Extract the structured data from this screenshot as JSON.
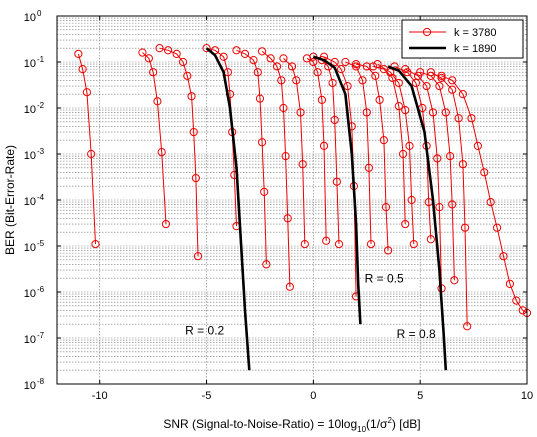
{
  "chart_data": {
    "type": "line",
    "title": "",
    "xlabel_parts": {
      "main": "SNR (Signal-to-Noise-Ratio) = 10log",
      "sub": "10",
      "rest": "(1/σ",
      "sup": "2",
      "end": ") [dB]"
    },
    "ylabel": "BER (Bit-Error-Rate)",
    "xlim": [
      -12,
      10
    ],
    "ylim_exponent": [
      -8,
      0
    ],
    "xscale": "linear",
    "yscale": "log",
    "grid": true,
    "x_ticks": [
      -10,
      -5,
      0,
      5,
      10
    ],
    "x_tick_labels": [
      "-10",
      "-5",
      "0",
      "5",
      "10"
    ],
    "y_tick_exponents": [
      0,
      -1,
      -2,
      -3,
      -4,
      -5,
      -6,
      -7,
      -8
    ],
    "y_tick_base": "10",
    "legend": {
      "position": "top-right",
      "entries": [
        {
          "label": "k = 3780",
          "style": "red-circle-line"
        },
        {
          "label": "k = 1890",
          "style": "black-thick-line"
        }
      ]
    },
    "colors": {
      "k3780": "#ee0000",
      "k1890": "#000000"
    },
    "series_k3780": [
      [
        [
          -11.0,
          0.15
        ],
        [
          -10.8,
          0.07
        ],
        [
          -10.6,
          0.022
        ],
        [
          -10.4,
          0.001
        ],
        [
          -10.2,
          1.1e-05
        ]
      ],
      [
        [
          -8.0,
          0.16
        ],
        [
          -7.7,
          0.12
        ],
        [
          -7.5,
          0.06
        ],
        [
          -7.3,
          0.014
        ],
        [
          -7.1,
          0.0011
        ],
        [
          -6.9,
          3e-05
        ]
      ],
      [
        [
          -7.2,
          0.2
        ],
        [
          -6.8,
          0.18
        ],
        [
          -6.4,
          0.15
        ],
        [
          -6.1,
          0.1
        ],
        [
          -5.9,
          0.05
        ],
        [
          -5.7,
          0.018
        ],
        [
          -5.6,
          0.003
        ],
        [
          -5.5,
          0.0003
        ],
        [
          -5.4,
          6e-06
        ]
      ],
      [
        [
          -5.0,
          0.2
        ],
        [
          -4.6,
          0.18
        ],
        [
          -4.2,
          0.13
        ],
        [
          -4.0,
          0.06
        ],
        [
          -3.9,
          0.02
        ],
        [
          -3.8,
          0.003
        ],
        [
          -3.7,
          0.00035
        ],
        [
          -3.6,
          2.7e-05
        ]
      ],
      [
        [
          -3.6,
          0.18
        ],
        [
          -3.2,
          0.15
        ],
        [
          -2.8,
          0.11
        ],
        [
          -2.6,
          0.06
        ],
        [
          -2.5,
          0.016
        ],
        [
          -2.4,
          0.0018
        ],
        [
          -2.3,
          0.00015
        ],
        [
          -2.2,
          4e-06
        ]
      ],
      [
        [
          -2.4,
          0.17
        ],
        [
          -2.0,
          0.12
        ],
        [
          -1.7,
          0.08
        ],
        [
          -1.5,
          0.04
        ],
        [
          -1.4,
          0.01
        ],
        [
          -1.3,
          0.0009
        ],
        [
          -1.2,
          4e-05
        ],
        [
          -1.1,
          1.3e-06
        ]
      ],
      [
        [
          -1.4,
          0.12
        ],
        [
          -1.0,
          0.08
        ],
        [
          -0.8,
          0.04
        ],
        [
          -0.6,
          0.008
        ],
        [
          -0.5,
          0.0006
        ],
        [
          -0.4,
          1.1e-05
        ]
      ],
      [
        [
          -0.3,
          0.12
        ],
        [
          0.0,
          0.1
        ],
        [
          0.2,
          0.06
        ],
        [
          0.4,
          0.015
        ],
        [
          0.5,
          0.0015
        ],
        [
          0.6,
          1.3e-05
        ]
      ],
      [
        [
          0.0,
          0.13
        ],
        [
          0.4,
          0.11
        ],
        [
          0.7,
          0.08
        ],
        [
          0.9,
          0.035
        ],
        [
          1.0,
          0.0055
        ],
        [
          1.1,
          0.00025
        ],
        [
          1.2,
          1.1e-05
        ]
      ],
      [
        [
          0.5,
          0.13
        ],
        [
          1.0,
          0.1
        ],
        [
          1.3,
          0.07
        ],
        [
          1.6,
          0.03
        ],
        [
          1.8,
          0.004
        ],
        [
          1.9,
          0.0002
        ],
        [
          2.0,
          8e-07
        ]
      ],
      [
        [
          1.5,
          0.1
        ],
        [
          2.0,
          0.08
        ],
        [
          2.3,
          0.04
        ],
        [
          2.5,
          0.008
        ],
        [
          2.6,
          0.0005
        ],
        [
          2.7,
          1.1e-05
        ]
      ],
      [
        [
          2.0,
          0.09
        ],
        [
          2.5,
          0.08
        ],
        [
          2.9,
          0.05
        ],
        [
          3.1,
          0.015
        ],
        [
          3.3,
          0.002
        ],
        [
          3.4,
          7e-05
        ],
        [
          3.5,
          8e-06
        ]
      ],
      [
        [
          2.8,
          0.08
        ],
        [
          3.3,
          0.07
        ],
        [
          3.7,
          0.045
        ],
        [
          4.0,
          0.011
        ],
        [
          4.2,
          0.001
        ],
        [
          4.3,
          3e-05
        ]
      ],
      [
        [
          3.0,
          0.09
        ],
        [
          3.6,
          0.06
        ],
        [
          4.0,
          0.035
        ],
        [
          4.3,
          0.009
        ],
        [
          4.5,
          0.0015
        ],
        [
          4.6,
          0.0001
        ],
        [
          4.7,
          1.1e-05
        ]
      ],
      [
        [
          3.8,
          0.08
        ],
        [
          4.4,
          0.06
        ],
        [
          4.8,
          0.035
        ],
        [
          5.1,
          0.01
        ],
        [
          5.3,
          0.0015
        ],
        [
          5.4,
          9e-05
        ],
        [
          5.5,
          1.4e-05
        ]
      ],
      [
        [
          4.3,
          0.07
        ],
        [
          4.9,
          0.05
        ],
        [
          5.3,
          0.03
        ],
        [
          5.6,
          0.008
        ],
        [
          5.8,
          0.0008
        ],
        [
          5.9,
          7e-05
        ],
        [
          6.0,
          1.2e-06
        ]
      ],
      [
        [
          5.0,
          0.06
        ],
        [
          5.5,
          0.05
        ],
        [
          5.9,
          0.03
        ],
        [
          6.2,
          0.008
        ],
        [
          6.4,
          0.0009
        ],
        [
          6.5,
          8e-05
        ],
        [
          6.6,
          1.8e-06
        ]
      ],
      [
        [
          5.5,
          0.06
        ],
        [
          6.0,
          0.045
        ],
        [
          6.5,
          0.025
        ],
        [
          6.8,
          0.006
        ],
        [
          7.0,
          0.0006
        ],
        [
          7.1,
          2.5e-05
        ],
        [
          7.2,
          1.8e-07
        ]
      ],
      [
        [
          6.0,
          0.05
        ],
        [
          6.5,
          0.04
        ],
        [
          7.0,
          0.02
        ],
        [
          7.4,
          0.006
        ],
        [
          7.7,
          0.0015
        ],
        [
          8.0,
          0.0004
        ],
        [
          8.3,
          9e-05
        ],
        [
          8.6,
          2.5e-05
        ],
        [
          8.9,
          6e-06
        ],
        [
          9.2,
          1.5e-06
        ],
        [
          9.5,
          6.5e-07
        ],
        [
          9.8,
          4e-07
        ],
        [
          10.0,
          3.5e-07
        ]
      ]
    ],
    "series_k1890": [
      [
        [
          -5.0,
          0.2
        ],
        [
          -4.6,
          0.14
        ],
        [
          -4.2,
          0.06
        ],
        [
          -3.9,
          0.01
        ],
        [
          -3.6,
          0.0005
        ],
        [
          -3.4,
          1.5e-05
        ],
        [
          -3.2,
          4e-07
        ],
        [
          -3.0,
          2e-08
        ]
      ],
      [
        [
          0.0,
          0.13
        ],
        [
          0.5,
          0.11
        ],
        [
          1.0,
          0.075
        ],
        [
          1.5,
          0.02
        ],
        [
          1.8,
          0.001
        ],
        [
          2.0,
          3e-05
        ],
        [
          2.1,
          1.5e-06
        ],
        [
          2.2,
          2e-07
        ]
      ],
      [
        [
          3.5,
          0.08
        ],
        [
          4.0,
          0.065
        ],
        [
          4.6,
          0.03
        ],
        [
          5.2,
          0.003
        ],
        [
          5.6,
          0.0001
        ],
        [
          5.9,
          3e-06
        ],
        [
          6.1,
          1.2e-07
        ],
        [
          6.2,
          2e-08
        ]
      ]
    ],
    "annotations": [
      {
        "text": "R = 0.2",
        "x": -6.0,
        "y": 1.2e-07
      },
      {
        "text": "R = 0.5",
        "x": 2.4,
        "y": 1.6e-06
      },
      {
        "text": "R = 0.8",
        "x": 3.9,
        "y": 1e-07
      }
    ]
  }
}
